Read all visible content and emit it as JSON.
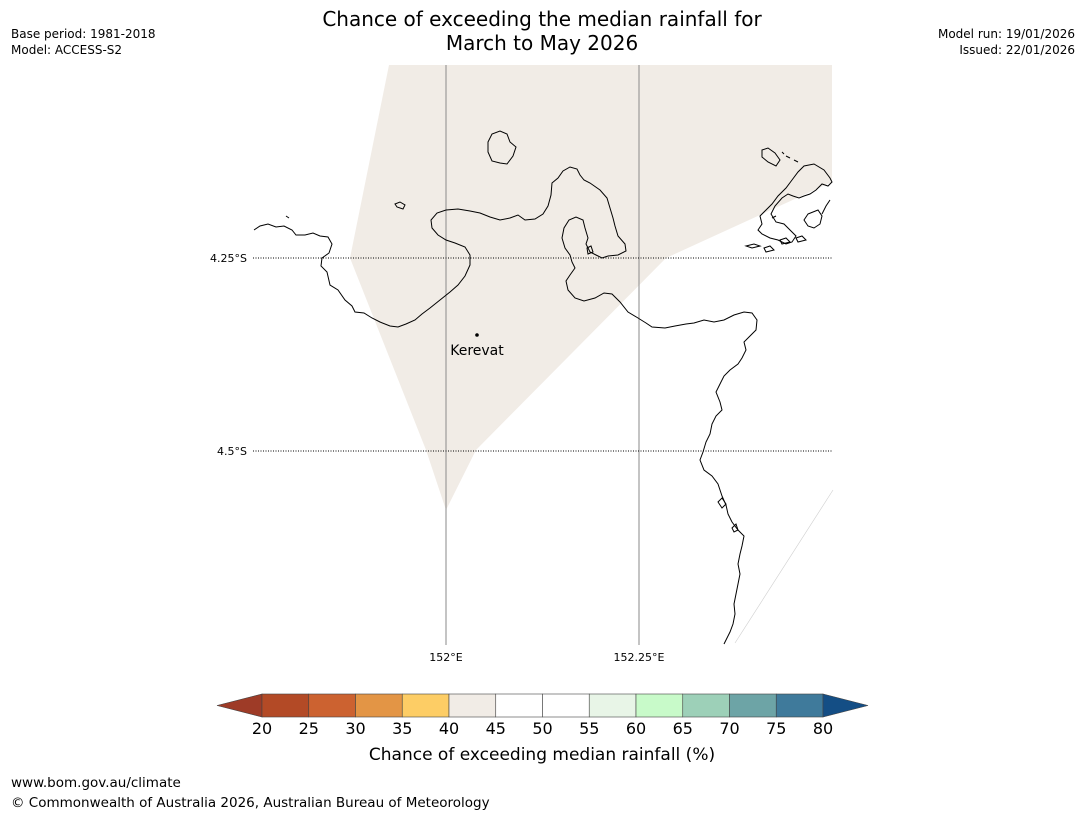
{
  "header": {
    "title_line1": "Chance of exceeding the median rainfall for",
    "title_line2": "March to May 2026",
    "base_period": "Base period: 1981-2018",
    "model": "Model: ACCESS-S2",
    "model_run": "Model run: 19/01/2026",
    "issued": "Issued: 22/01/2026"
  },
  "map": {
    "place": {
      "name": "Kerevat",
      "lon": 152.04,
      "lat": -4.35
    },
    "lat_labels": [
      "4.25°S",
      "4.5°S"
    ],
    "lon_labels": [
      "152°E",
      "152.25°E"
    ],
    "shaded_category": "40-45",
    "shaded_color": "#f1ece6"
  },
  "colorbar": {
    "title": "Chance of exceeding median rainfall (%)",
    "ticks": [
      "20",
      "25",
      "30",
      "35",
      "40",
      "45",
      "50",
      "55",
      "60",
      "65",
      "70",
      "75",
      "80"
    ],
    "under_color": "#9e3b27",
    "over_color": "#144e85",
    "colors": [
      "#b34a26",
      "#cc6230",
      "#e39545",
      "#fdcd65",
      "#f1ece6",
      "#ffffff",
      "#ffffff",
      "#e8f5e7",
      "#c8fac9",
      "#9dd0b8",
      "#6da4a6",
      "#3f7a9b"
    ]
  },
  "footer": {
    "url": "www.bom.gov.au/climate",
    "copyright": "© Commonwealth of Australia 2026, Australian Bureau of Meteorology"
  }
}
